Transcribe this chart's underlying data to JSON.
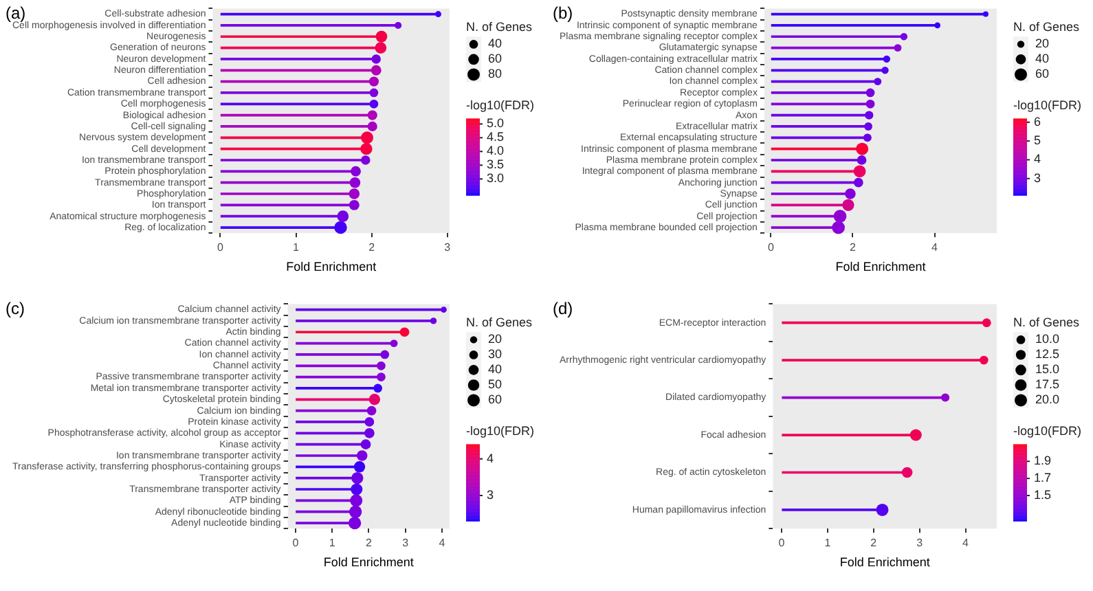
{
  "chart_data": [
    {
      "type": "lollipop",
      "orientation": "horizontal",
      "annotations": [
        "(a)"
      ],
      "xlabel": "Fold Enrichment",
      "legend_title": "N. of Genes",
      "clabel": "-log10(FDR)",
      "grid": false,
      "categories": [
        "Cell-substrate adhesion",
        "Cell morphogenesis involved in differentiation",
        "Neurogenesis",
        "Generation of neurons",
        "Neuron development",
        "Neuron differentiation",
        "Cell adhesion",
        "Cation transmembrane transport",
        "Cell morphogenesis",
        "Biological adhesion",
        "Cell-cell signaling",
        "Nervous system development",
        "Cell development",
        "Ion transmembrane transport",
        "Protein phosphorylation",
        "Transmembrane transport",
        "Phosphorylation",
        "Ion transport",
        "Anatomical structure morphogenesis",
        "Reg. of localization"
      ],
      "values": [
        2.88,
        2.35,
        2.13,
        2.12,
        2.06,
        2.06,
        2.03,
        2.03,
        2.03,
        2.01,
        2.01,
        1.94,
        1.93,
        1.92,
        1.79,
        1.78,
        1.77,
        1.77,
        1.62,
        1.59
      ],
      "sizes": [
        20,
        25,
        70,
        70,
        45,
        55,
        50,
        40,
        40,
        50,
        50,
        80,
        75,
        45,
        55,
        60,
        60,
        55,
        70,
        85
      ],
      "size_legend": [
        40,
        60,
        80
      ],
      "cvalues": [
        2.6,
        3.0,
        5.0,
        4.9,
        3.0,
        3.8,
        3.7,
        3.1,
        2.7,
        3.7,
        3.6,
        5.0,
        5.0,
        3.1,
        3.2,
        3.3,
        3.5,
        3.2,
        3.0,
        2.6
      ],
      "clim": [
        2.4,
        5.2
      ],
      "cticks": [
        {
          "value": 3,
          "label": "3.0"
        },
        3.5,
        {
          "value": 4,
          "label": "4.0"
        },
        4.5,
        {
          "value": 5,
          "label": "5.0"
        }
      ],
      "xlim": [
        -0.1,
        3.03
      ],
      "xticks": [
        0,
        1,
        2,
        3
      ]
    },
    {
      "type": "lollipop",
      "orientation": "horizontal",
      "annotations": [
        "(b)"
      ],
      "xlabel": "Fold Enrichment",
      "legend_title": "N. of Genes",
      "clabel": "-log10(FDR)",
      "grid": false,
      "categories": [
        "Postsynaptic density membrane",
        "Intrinsic component of synaptic membrane",
        "Plasma membrane signaling receptor complex",
        "Glutamatergic synapse",
        "Collagen-containing extracellular matrix",
        "Cation channel complex",
        "Ion channel complex",
        "Receptor complex",
        "Perinuclear region of cytoplasm",
        "Axon",
        "Extracellular matrix",
        "External encapsulating structure",
        "Intrinsic component of plasma membrane",
        "Plasma membrane protein complex",
        "Integral component of plasma membrane",
        "Anchoring junction",
        "Synapse",
        "Cell junction",
        "Cell projection",
        "Plasma membrane bounded cell projection"
      ],
      "values": [
        5.25,
        4.07,
        3.25,
        3.1,
        2.83,
        2.79,
        2.61,
        2.43,
        2.43,
        2.4,
        2.38,
        2.36,
        2.23,
        2.22,
        2.17,
        2.14,
        1.94,
        1.89,
        1.69,
        1.65
      ],
      "sizes": [
        12,
        14,
        20,
        22,
        20,
        20,
        22,
        30,
        30,
        28,
        26,
        26,
        60,
        35,
        58,
        35,
        45,
        55,
        65,
        65
      ],
      "size_legend": [
        20,
        40,
        60
      ],
      "cvalues": [
        2.3,
        2.3,
        3.0,
        3.3,
        2.4,
        2.5,
        2.7,
        3.0,
        3.2,
        2.8,
        2.8,
        2.8,
        6.0,
        2.9,
        5.6,
        2.9,
        3.2,
        5.0,
        3.4,
        3.3
      ],
      "clim": [
        2.1,
        6.2
      ],
      "cticks": [
        3,
        4,
        5,
        6
      ],
      "xlim": [
        -0.16,
        5.52
      ],
      "xticks": [
        0,
        2,
        4
      ]
    },
    {
      "type": "lollipop",
      "orientation": "horizontal",
      "annotations": [
        "(c)"
      ],
      "xlabel": "Fold Enrichment",
      "legend_title": "N. of Genes",
      "clabel": "-log10(FDR)",
      "grid": false,
      "categories": [
        "Calcium channel activity",
        "Calcium ion transmembrane transporter activity",
        "Actin binding",
        "Cation channel activity",
        "Ion channel activity",
        "Channel activity",
        "Passive transmembrane transporter activity",
        "Metal ion transmembrane transporter activity",
        "Cytoskeletal protein binding",
        "Calcium ion binding",
        "Protein kinase activity",
        "Phosphotransferase activity, alcohol group as acceptor",
        "Kinase activity",
        "Ion transmembrane transporter activity",
        "Transferase activity, transferring phosphorus-containing groups",
        "Transporter activity",
        "Transmembrane transporter activity",
        "ATP binding",
        "Adenyl ribonucleotide binding",
        "Adenyl nucleotide binding"
      ],
      "values": [
        4.05,
        3.77,
        2.98,
        2.69,
        2.44,
        2.34,
        2.34,
        2.25,
        2.16,
        2.08,
        2.02,
        2.02,
        1.92,
        1.82,
        1.75,
        1.69,
        1.67,
        1.66,
        1.64,
        1.62
      ],
      "sizes": [
        14,
        16,
        35,
        22,
        30,
        30,
        30,
        30,
        50,
        35,
        35,
        40,
        40,
        45,
        50,
        55,
        55,
        60,
        62,
        62
      ],
      "size_legend": [
        20,
        30,
        40,
        50,
        60
      ],
      "cvalues": [
        2.6,
        2.7,
        4.3,
        2.9,
        2.8,
        2.9,
        2.9,
        2.4,
        4.0,
        2.9,
        2.7,
        2.7,
        2.7,
        2.8,
        2.4,
        2.7,
        2.5,
        2.8,
        2.8,
        2.8
      ],
      "clim": [
        2.3,
        4.4
      ],
      "cticks": [
        3,
        4
      ],
      "xlim": [
        -0.21,
        4.21
      ],
      "xticks": [
        0,
        1,
        2,
        3,
        4
      ]
    },
    {
      "type": "lollipop",
      "orientation": "horizontal",
      "annotations": [
        "(d)"
      ],
      "xlabel": "Fold Enrichment",
      "legend_title": "N. of Genes",
      "clabel": "-log10(FDR)",
      "grid": false,
      "categories": [
        "ECM-receptor interaction",
        "Arrhythmogenic right ventricular cardiomyopathy",
        "Dilated cardiomyopathy",
        "Focal adhesion",
        "Reg. of actin cytoskeleton",
        "Human papillomavirus infection"
      ],
      "values": [
        4.46,
        4.4,
        3.56,
        2.92,
        2.73,
        2.19
      ],
      "sizes": [
        10,
        10,
        9,
        18,
        15,
        20
      ],
      "size_legend": [
        {
          "value": 10,
          "label": "10.0"
        },
        12.5,
        {
          "value": 15,
          "label": "15.0"
        },
        17.5,
        {
          "value": 20,
          "label": "20.0"
        }
      ],
      "cvalues": [
        2.0,
        2.0,
        1.5,
        2.0,
        1.95,
        1.3
      ],
      "clim": [
        1.2,
        2.1
      ],
      "cticks": [
        1.5,
        1.7,
        1.9
      ],
      "xlim": [
        -0.19,
        4.68
      ],
      "xticks": [
        0,
        1,
        2,
        3,
        4
      ]
    }
  ]
}
